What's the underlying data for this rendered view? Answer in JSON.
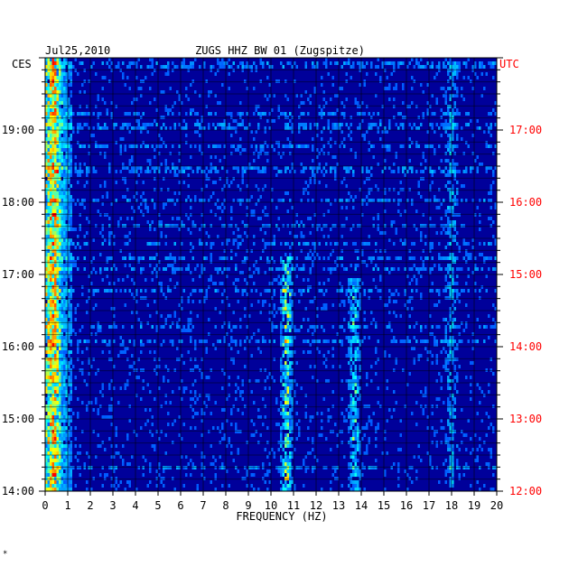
{
  "header": {
    "date": "Jul25,2010",
    "station": "ZUGS HHZ BW 01 (Zugspitze)"
  },
  "footer": {
    "mark": "*"
  },
  "chart_data": {
    "type": "heatmap",
    "title": "ZUGS HHZ BW 01 (Zugspitze)",
    "date": "Jul25,2010",
    "xlabel": "FREQUENCY (HZ)",
    "xlim": [
      0,
      20
    ],
    "x_ticks": [
      0,
      1,
      2,
      3,
      4,
      5,
      6,
      7,
      8,
      9,
      10,
      11,
      12,
      13,
      14,
      15,
      16,
      17,
      18,
      19,
      20
    ],
    "left_axis": {
      "label": "CES",
      "ticks": [
        "14:00",
        "15:00",
        "16:00",
        "17:00",
        "18:00",
        "19:00"
      ],
      "color": "#000000"
    },
    "right_axis": {
      "label": "UTC",
      "ticks": [
        "12:00",
        "13:00",
        "14:00",
        "15:00",
        "16:00",
        "17:00"
      ],
      "color": "#ff0000"
    },
    "time_range_local": [
      "14:00",
      "20:00"
    ],
    "grid": true,
    "colormap": [
      "#00007f",
      "#0000ff",
      "#0080ff",
      "#00ffff",
      "#ffff00",
      "#ff7f00",
      "#ff0000"
    ],
    "features": [
      {
        "freq": 0.4,
        "band": "0-1 Hz",
        "intensity": "high",
        "span": "entire record"
      },
      {
        "freq": 10.7,
        "band": "10.5-11 Hz",
        "intensity": "high",
        "span": "14:00-17:20"
      },
      {
        "freq": 13.7,
        "band": "13.3-14 Hz",
        "intensity": "medium",
        "span": "14:00-17:00"
      },
      {
        "freq": 18,
        "band": "17.8-18.2 Hz",
        "intensity": "low",
        "span": "intermittent"
      }
    ]
  }
}
